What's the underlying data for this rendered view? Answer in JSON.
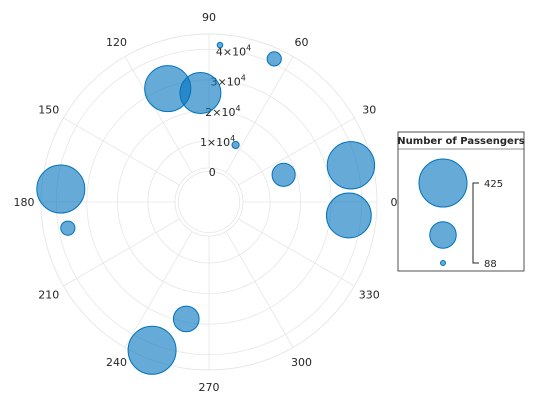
{
  "chart_data": {
    "type": "polar-bubble",
    "title": "",
    "theta_ticks": [
      "0",
      "30",
      "60",
      "90",
      "120",
      "150",
      "180",
      "210",
      "240",
      "270",
      "300",
      "330"
    ],
    "r_ticks": [
      {
        "value": 0,
        "mantissa": "0",
        "exponent": ""
      },
      {
        "value": 10000,
        "mantissa": "1×10",
        "exponent": "4"
      },
      {
        "value": 20000,
        "mantissa": "2×10",
        "exponent": "4"
      },
      {
        "value": 30000,
        "mantissa": "3×10",
        "exponent": "4"
      },
      {
        "value": 40000,
        "mantissa": "4×10",
        "exponent": "4"
      }
    ],
    "rlim": [
      -10000,
      45000
    ],
    "bubble_color": "#0072BD",
    "bubble_alpha": 0.6,
    "size_range": [
      88,
      425
    ],
    "points": [
      {
        "theta": 14.5,
        "r": 38000,
        "size": 420
      },
      {
        "theta": 354.5,
        "r": 36000,
        "size": 400
      },
      {
        "theta": 20,
        "r": 16000,
        "size": 230
      },
      {
        "theta": 65,
        "r": 10600,
        "size": 105
      },
      {
        "theta": 86,
        "r": 41500,
        "size": 92
      },
      {
        "theta": 65.5,
        "r": 41500,
        "size": 160
      },
      {
        "theta": 94.5,
        "r": 25800,
        "size": 370
      },
      {
        "theta": 110,
        "r": 29500,
        "size": 410
      },
      {
        "theta": 175,
        "r": 38700,
        "size": 425
      },
      {
        "theta": 190.5,
        "r": 37000,
        "size": 160
      },
      {
        "theta": 259,
        "r": 29000,
        "size": 250
      },
      {
        "theta": 249,
        "r": 42000,
        "size": 425
      }
    ],
    "legend": {
      "title": "Number of Passengers",
      "max_label": "425",
      "min_label": "88",
      "placement": "right"
    }
  }
}
